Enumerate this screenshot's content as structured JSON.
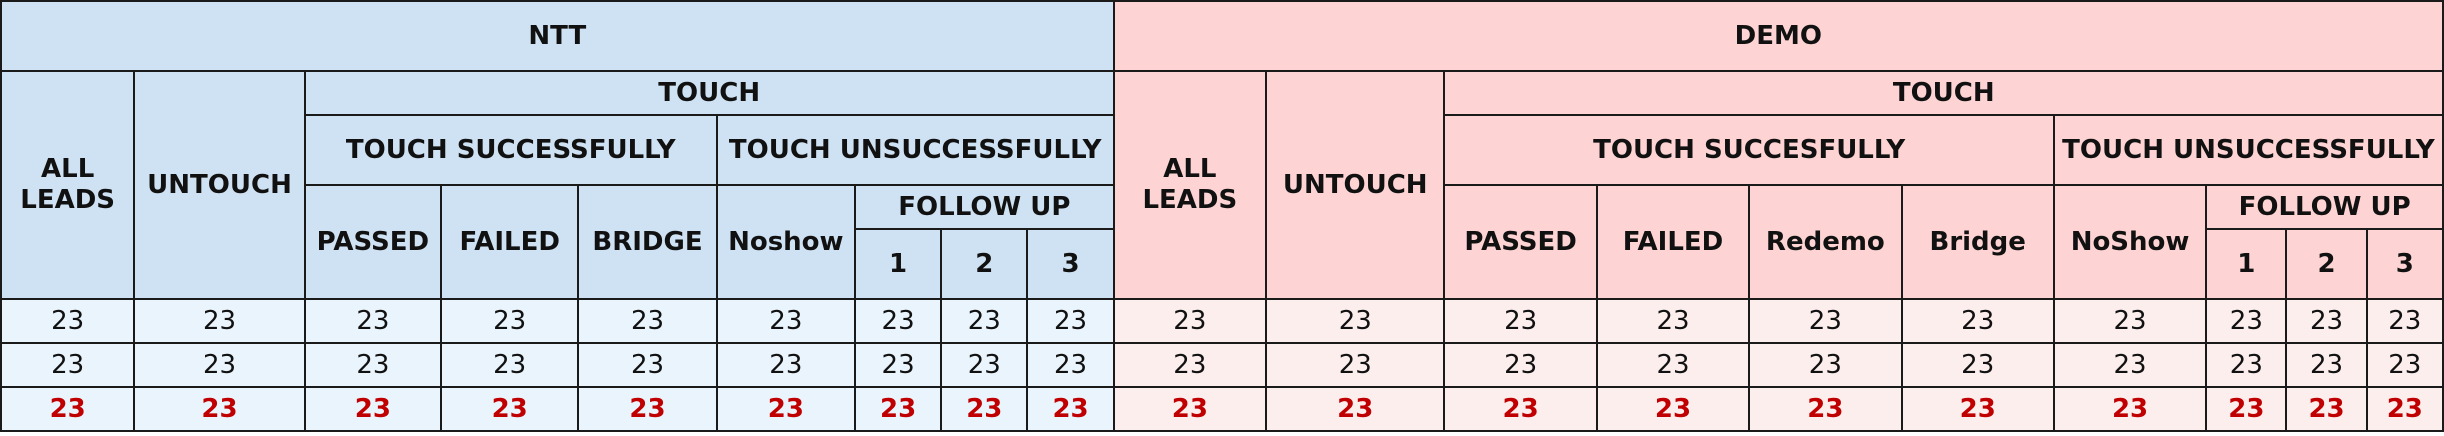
{
  "header": {
    "ntt": "NTT",
    "demo": "DEMO",
    "all_leads": "ALL LEADS",
    "untouch": "UNTOUCH",
    "touch": "TOUCH",
    "ntt_touch_successfully": "TOUCH SUCCESSFULLY",
    "ntt_touch_unsuccessfully": "TOUCH UNSUCCESSFULLY",
    "demo_touch_successfully": "TOUCH SUCCESFULLY",
    "demo_touch_unsuccessfully": "TOUCH UNSUCCESSFULLY",
    "follow_up": "FOLLOW UP",
    "passed": "PASSED",
    "failed": "FAILED",
    "bridge_upper": "BRIDGE",
    "noshow_ntt": "Noshow",
    "redemo": "Redemo",
    "bridge": "Bridge",
    "noshow_demo": "NoShow",
    "fu1": "1",
    "fu2": "2",
    "fu3": "3"
  },
  "rows": [
    [
      "23",
      "23",
      "23",
      "23",
      "23",
      "23",
      "23",
      "23",
      "23",
      "23",
      "23",
      "23",
      "23",
      "23",
      "23",
      "23",
      "23",
      "23",
      "23"
    ],
    [
      "23",
      "23",
      "23",
      "23",
      "23",
      "23",
      "23",
      "23",
      "23",
      "23",
      "23",
      "23",
      "23",
      "23",
      "23",
      "23",
      "23",
      "23",
      "23"
    ],
    [
      "23",
      "23",
      "23",
      "23",
      "23",
      "23",
      "23",
      "23",
      "23",
      "23",
      "23",
      "23",
      "23",
      "23",
      "23",
      "23",
      "23",
      "23",
      "23"
    ]
  ],
  "colors": {
    "ntt_header": "#cfe2f3",
    "ntt_cell": "#eaf4fd",
    "demo_header": "#fdd3d3",
    "demo_cell": "#fdeeee",
    "total_text": "#c00000"
  }
}
